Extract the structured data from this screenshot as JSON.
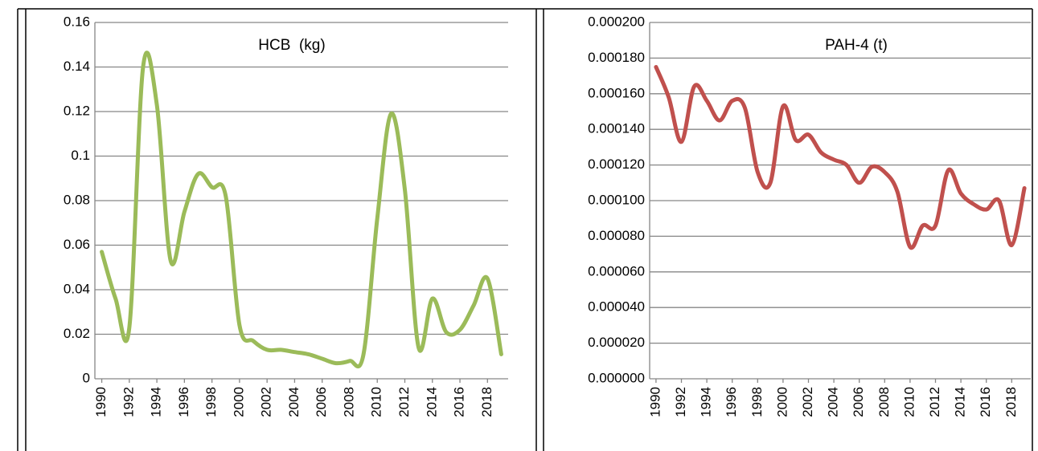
{
  "chart_data": [
    {
      "type": "line",
      "title": "HCB  (kg)",
      "x": [
        1990,
        1991,
        1992,
        1993,
        1994,
        1995,
        1996,
        1997,
        1998,
        1999,
        2000,
        2001,
        2002,
        2003,
        2004,
        2005,
        2006,
        2007,
        2008,
        2009,
        2010,
        2011,
        2012,
        2013,
        2014,
        2015,
        2016,
        2017,
        2018,
        2019
      ],
      "series": [
        {
          "color": "#9bbb59",
          "values": [
            0.057,
            0.036,
            0.023,
            0.14,
            0.123,
            0.053,
            0.075,
            0.092,
            0.086,
            0.082,
            0.024,
            0.017,
            0.013,
            0.013,
            0.012,
            0.011,
            0.009,
            0.007,
            0.008,
            0.011,
            0.072,
            0.119,
            0.085,
            0.014,
            0.036,
            0.021,
            0.022,
            0.033,
            0.045,
            0.011
          ]
        }
      ],
      "xlim": [
        1989.5,
        2019.5
      ],
      "xticks": [
        1990,
        1992,
        1994,
        1996,
        1998,
        2000,
        2002,
        2004,
        2006,
        2008,
        2010,
        2012,
        2014,
        2016,
        2018
      ],
      "ylim": [
        0,
        0.16
      ],
      "yticks": [
        0,
        0.02,
        0.04,
        0.06,
        0.08,
        0.1,
        0.12,
        0.14,
        0.16
      ],
      "grid": true
    },
    {
      "type": "line",
      "title": "PAH-4 (t)",
      "x": [
        1990,
        1991,
        1992,
        1993,
        1994,
        1995,
        1996,
        1997,
        1998,
        1999,
        2000,
        2001,
        2002,
        2003,
        2004,
        2005,
        2006,
        2007,
        2008,
        2009,
        2010,
        2011,
        2012,
        2013,
        2014,
        2015,
        2016,
        2017,
        2018,
        2019
      ],
      "series": [
        {
          "color": "#c0504d",
          "values": [
            0.000175,
            0.000158,
            0.000133,
            0.000164,
            0.000156,
            0.000145,
            0.000156,
            0.000152,
            0.000116,
            0.00011,
            0.000153,
            0.000134,
            0.000137,
            0.000127,
            0.000123,
            0.00012,
            0.00011,
            0.000119,
            0.000116,
            0.000105,
            7.4e-05,
            8.6e-05,
            8.6e-05,
            0.000117,
            0.000104,
            9.8e-05,
            9.5e-05,
            0.0001,
            7.5e-05,
            0.000107
          ]
        }
      ],
      "xlim": [
        1989.5,
        2019.5
      ],
      "xticks": [
        1990,
        1992,
        1994,
        1996,
        1998,
        2000,
        2002,
        2004,
        2006,
        2008,
        2010,
        2012,
        2014,
        2016,
        2018
      ],
      "ylim": [
        0,
        0.0002
      ],
      "yticks": [
        {
          "value": 0,
          "label": "0.000000"
        },
        {
          "value": 2e-05,
          "label": "0.000020"
        },
        {
          "value": 4e-05,
          "label": "0.000040"
        },
        {
          "value": 6e-05,
          "label": "0.000060"
        },
        {
          "value": 8e-05,
          "label": "0.000080"
        },
        {
          "value": 0.0001,
          "label": "0.000100"
        },
        {
          "value": 0.00012,
          "label": "0.000120"
        },
        {
          "value": 0.00014,
          "label": "0.000140"
        },
        {
          "value": 0.00016,
          "label": "0.000160"
        },
        {
          "value": 0.00018,
          "label": "0.000180"
        },
        {
          "value": 0.0002,
          "label": "0.000200"
        }
      ],
      "grid": true
    }
  ]
}
